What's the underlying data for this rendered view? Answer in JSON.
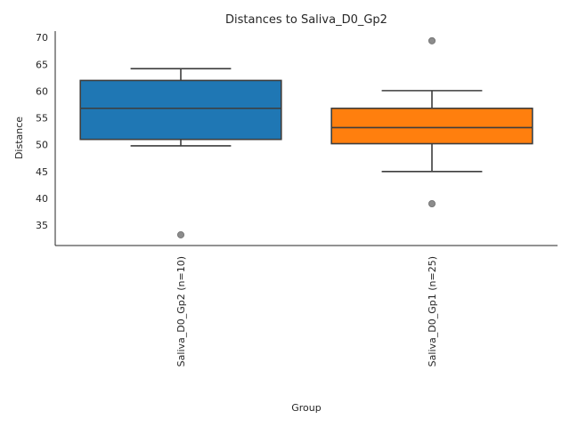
{
  "chart_data": {
    "type": "box",
    "title": "Distances to Saliva_D0_Gp2",
    "xlabel": "Group",
    "ylabel": "Distance",
    "ylim": [
      31.2,
      71.2
    ],
    "yticks": [
      35,
      40,
      45,
      50,
      55,
      60,
      65,
      70
    ],
    "grid": false,
    "series": [
      {
        "category": "Saliva_D0_Gp2 (n=10)",
        "color": "#1f77b4",
        "whisker_low": 49.8,
        "q1": 51.0,
        "median": 56.8,
        "q3": 62.0,
        "whisker_high": 64.2,
        "outliers": [
          33.2
        ]
      },
      {
        "category": "Saliva_D0_Gp1 (n=25)",
        "color": "#ff7f0e",
        "whisker_low": 45.0,
        "q1": 50.2,
        "median": 53.2,
        "q3": 56.8,
        "whisker_high": 60.1,
        "outliers": [
          39.0,
          69.4
        ]
      }
    ]
  }
}
